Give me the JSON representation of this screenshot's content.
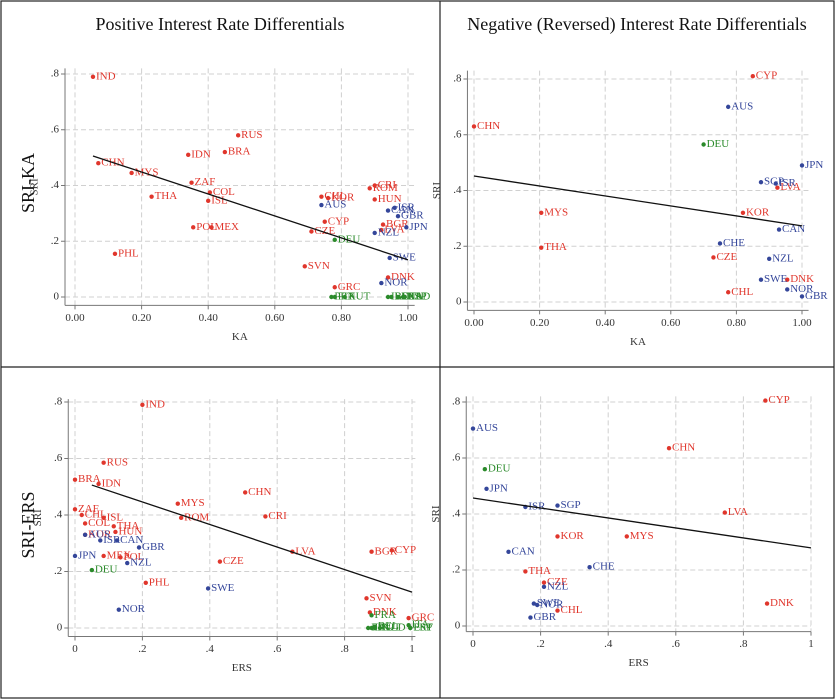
{
  "chart_data": [
    {
      "type": "scatter",
      "title": "Positive Interest Rate Differentials",
      "row_label": "SRI-KA",
      "x_label": "KA",
      "y_label": "SRI",
      "grid": true,
      "xlim": [
        -0.03,
        1.02
      ],
      "ylim": [
        -0.03,
        0.82
      ],
      "xticks": [
        {
          "value": 0,
          "label": "0.00"
        },
        {
          "value": 0.2,
          "label": "0.20"
        },
        {
          "value": 0.4,
          "label": "0.40"
        },
        {
          "value": 0.6,
          "label": "0.60"
        },
        {
          "value": 0.8,
          "label": "0.80"
        },
        {
          "value": 1,
          "label": "1.00"
        }
      ],
      "yticks": [
        0,
        {
          "value": 0.2,
          "label": ".2"
        },
        {
          "value": 0.4,
          "label": ".4"
        },
        {
          "value": 0.6,
          "label": ".6"
        },
        {
          "value": 0.8,
          "label": ".8"
        }
      ],
      "series": [
        {
          "color": "#e0362c",
          "labels": [
            "IND",
            "RUS",
            "BRA",
            "IDN",
            "CHN",
            "MYS",
            "ZAF",
            "COL",
            "THA",
            "ISL",
            "POL",
            "MEX",
            "PHL",
            "CHL",
            "KOR",
            "ROM",
            "CRI",
            "HUN",
            "CYP",
            "CZE",
            "BGR",
            "LVA",
            "SVN",
            "GRC",
            "DNK"
          ],
          "x": [
            0.054,
            0.49,
            0.45,
            0.34,
            0.07,
            0.17,
            0.35,
            0.405,
            0.23,
            0.4,
            0.355,
            0.41,
            0.12,
            0.74,
            0.76,
            0.885,
            0.9,
            0.9,
            0.75,
            0.71,
            0.925,
            0.92,
            0.69,
            0.78,
            0.94
          ],
          "values": [
            0.79,
            0.58,
            0.52,
            0.51,
            0.48,
            0.445,
            0.41,
            0.375,
            0.36,
            0.345,
            0.25,
            0.25,
            0.155,
            0.36,
            0.355,
            0.39,
            0.4,
            0.35,
            0.27,
            0.235,
            0.26,
            0.24,
            0.11,
            0.035,
            0.07
          ]
        },
        {
          "color": "#34469a",
          "labels": [
            "AUS",
            "CAN",
            "ISR",
            "GBR",
            "NZL",
            "JPN",
            "SWE",
            "NOR"
          ],
          "x": [
            0.74,
            0.94,
            0.96,
            0.97,
            0.9,
            0.995,
            0.945,
            0.92
          ],
          "values": [
            0.33,
            0.31,
            0.32,
            0.29,
            0.23,
            0.25,
            0.14,
            0.05
          ]
        },
        {
          "color": "#2a8a2a",
          "labels": [
            "DEU",
            "PRT",
            "FIN",
            "AUT",
            "BEL",
            "IRL",
            "FRA",
            "ITA",
            "NLD",
            "ESP"
          ],
          "x": [
            0.78,
            0.77,
            0.78,
            0.81,
            0.95,
            0.94,
            0.97,
            0.985,
            0.99,
            0.99
          ],
          "values": [
            0.205,
            0,
            0,
            0,
            0,
            0,
            0,
            0,
            0,
            0
          ]
        }
      ],
      "fit_line": {
        "x": [
          0.054,
          1.0
        ],
        "values": [
          0.506,
          0.133
        ]
      }
    },
    {
      "type": "scatter",
      "title": "Negative (Reversed) Interest Rate Differentials",
      "x_label": "KA",
      "y_label": "SRI",
      "grid": true,
      "xlim": [
        -0.02,
        1.02
      ],
      "ylim": [
        -0.03,
        0.83
      ],
      "xticks": [
        {
          "value": 0,
          "label": "0.00"
        },
        {
          "value": 0.2,
          "label": "0.20"
        },
        {
          "value": 0.4,
          "label": "0.40"
        },
        {
          "value": 0.6,
          "label": "0.60"
        },
        {
          "value": 0.8,
          "label": "0.80"
        },
        {
          "value": 1,
          "label": "1.00"
        }
      ],
      "yticks": [
        0,
        {
          "value": 0.2,
          "label": ".2"
        },
        {
          "value": 0.4,
          "label": ".4"
        },
        {
          "value": 0.6,
          "label": ".6"
        },
        {
          "value": 0.8,
          "label": ".8"
        }
      ],
      "series": [
        {
          "color": "#e0362c",
          "labels": [
            "CYP",
            "CHN",
            "LVA",
            "KOR",
            "MYS",
            "THA",
            "CZE",
            "DNK",
            "CHL"
          ],
          "x": [
            0.85,
            0,
            0.925,
            0.82,
            0.205,
            0.205,
            0.73,
            0.955,
            0.775
          ],
          "values": [
            0.81,
            0.63,
            0.41,
            0.32,
            0.32,
            0.195,
            0.16,
            0.08,
            0.035
          ]
        },
        {
          "color": "#34469a",
          "labels": [
            "AUS",
            "JPN",
            "SGP",
            "ISR",
            "CAN",
            "CHE",
            "NZL",
            "SWE",
            "NOR",
            "GBR"
          ],
          "x": [
            0.775,
            1.0,
            0.875,
            0.92,
            0.93,
            0.75,
            0.9,
            0.875,
            0.955,
            1.0
          ],
          "values": [
            0.7,
            0.49,
            0.43,
            0.425,
            0.26,
            0.21,
            0.155,
            0.08,
            0.045,
            0.02
          ]
        },
        {
          "color": "#2a8a2a",
          "labels": [
            "DEU"
          ],
          "x": [
            0.7
          ],
          "values": [
            0.565
          ]
        }
      ],
      "fit_line": {
        "x": [
          0,
          1.0
        ],
        "values": [
          0.452,
          0.273
        ]
      }
    },
    {
      "type": "scatter",
      "row_label": "SRI-ERS",
      "x_label": "ERS",
      "y_label": "SRI",
      "grid": true,
      "xlim": [
        -0.02,
        1.01
      ],
      "ylim": [
        -0.03,
        0.81
      ],
      "xticks": [
        0,
        {
          "value": 0.2,
          "label": ".2"
        },
        {
          "value": 0.4,
          "label": ".4"
        },
        {
          "value": 0.6,
          "label": ".6"
        },
        {
          "value": 0.8,
          "label": ".8"
        },
        1
      ],
      "yticks": [
        0,
        {
          "value": 0.2,
          "label": ".2"
        },
        {
          "value": 0.4,
          "label": ".4"
        },
        {
          "value": 0.6,
          "label": ".6"
        },
        {
          "value": 0.8,
          "label": ".8"
        }
      ],
      "series": [
        {
          "color": "#e0362c",
          "labels": [
            "IND",
            "RUS",
            "BRA",
            "IDN",
            "MYS",
            "CHN",
            "ZAF",
            "CHL",
            "ISL",
            "COL",
            "THA",
            "ROM",
            "CRI",
            "HUN",
            "KOR",
            "MEX",
            "POL",
            "LVA",
            "BGR",
            "CYP",
            "CZE",
            "PHL",
            "SVN",
            "DNK",
            "GRC"
          ],
          "x": [
            0.2,
            0.085,
            0,
            0.07,
            0.305,
            0.505,
            0,
            0.02,
            0.085,
            0.03,
            0.115,
            0.315,
            0.565,
            0.12,
            0.03,
            0.085,
            0.135,
            0.645,
            0.88,
            0.94,
            0.43,
            0.21,
            0.865,
            0.875,
            0.99
          ],
          "values": [
            0.79,
            0.585,
            0.525,
            0.51,
            0.44,
            0.48,
            0.42,
            0.4,
            0.39,
            0.37,
            0.36,
            0.39,
            0.395,
            0.34,
            0.33,
            0.255,
            0.25,
            0.27,
            0.27,
            0.275,
            0.235,
            0.16,
            0.105,
            0.055,
            0.035
          ]
        },
        {
          "color": "#34469a",
          "labels": [
            "AUS",
            "ISR",
            "CAN",
            "GBR",
            "JPN",
            "NZL",
            "SWE",
            "NOR"
          ],
          "x": [
            0.03,
            0.075,
            0.125,
            0.19,
            0,
            0.155,
            0.395,
            0.13
          ],
          "values": [
            0.33,
            0.31,
            0.31,
            0.285,
            0.255,
            0.23,
            0.14,
            0.065
          ]
        },
        {
          "color": "#2a8a2a",
          "labels": [
            "DEU",
            "FRA",
            "IRL",
            "BEL",
            "FIN",
            "AUT",
            "NLD",
            "ITA",
            "PRT",
            "ESP"
          ],
          "x": [
            0.05,
            0.88,
            0.88,
            0.89,
            0.87,
            0.89,
            0.905,
            0.99,
            0.995,
            0.995
          ],
          "values": [
            0.205,
            0.045,
            0,
            0.005,
            0,
            0,
            0,
            0.01,
            0,
            0
          ]
        }
      ],
      "fit_line": {
        "x": [
          0.05,
          1.0
        ],
        "values": [
          0.506,
          0.127
        ]
      }
    },
    {
      "type": "scatter",
      "x_label": "ERS",
      "y_label": "SRI",
      "grid": true,
      "xlim": [
        -0.02,
        1.0
      ],
      "ylim": [
        -0.02,
        0.82
      ],
      "xticks": [
        0,
        {
          "value": 0.2,
          "label": ".2"
        },
        {
          "value": 0.4,
          "label": ".4"
        },
        {
          "value": 0.6,
          "label": ".6"
        },
        {
          "value": 0.8,
          "label": ".8"
        },
        1
      ],
      "yticks": [
        0,
        {
          "value": 0.2,
          "label": ".2"
        },
        {
          "value": 0.4,
          "label": ".4"
        },
        {
          "value": 0.6,
          "label": ".6"
        },
        {
          "value": 0.8,
          "label": ".8"
        }
      ],
      "series": [
        {
          "color": "#e0362c",
          "labels": [
            "CYP",
            "CHN",
            "LVA",
            "KOR",
            "MYS",
            "THA",
            "CZE",
            "DNK",
            "CHL"
          ],
          "x": [
            0.865,
            0.58,
            0.745,
            0.25,
            0.455,
            0.155,
            0.21,
            0.87,
            0.25
          ],
          "values": [
            0.805,
            0.635,
            0.405,
            0.32,
            0.32,
            0.195,
            0.155,
            0.08,
            0.055
          ]
        },
        {
          "color": "#34469a",
          "labels": [
            "AUS",
            "JPN",
            "SGP",
            "ISR",
            "CAN",
            "CHE",
            "NZL",
            "SWE",
            "NOR",
            "GBR"
          ],
          "x": [
            0,
            0.04,
            0.25,
            0.155,
            0.105,
            0.345,
            0.21,
            0.18,
            0.19,
            0.17
          ],
          "values": [
            0.705,
            0.49,
            0.43,
            0.425,
            0.265,
            0.21,
            0.14,
            0.08,
            0.075,
            0.03
          ]
        },
        {
          "color": "#2a8a2a",
          "labels": [
            "DEU"
          ],
          "x": [
            0.035
          ],
          "values": [
            0.56
          ]
        }
      ],
      "fit_line": {
        "x": [
          0,
          1.0
        ],
        "values": [
          0.457,
          0.279
        ]
      }
    }
  ]
}
